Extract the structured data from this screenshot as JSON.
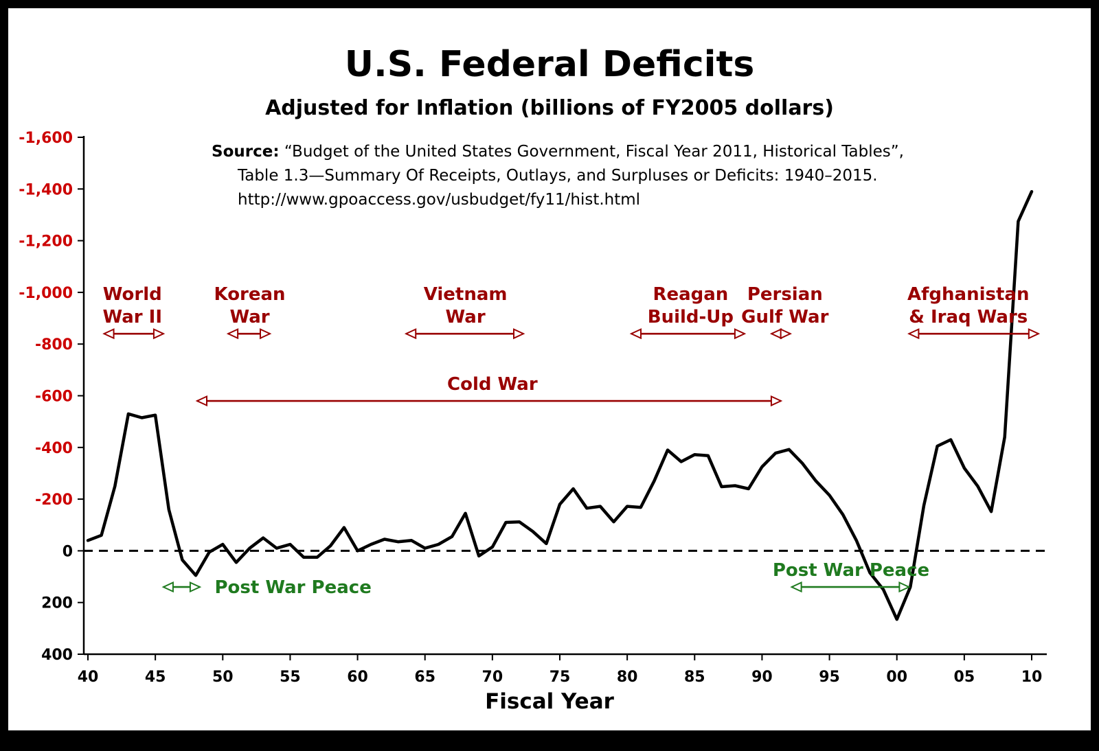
{
  "chart": {
    "title": "U.S. Federal Deficits",
    "subtitle": "Adjusted for Inflation (billions of FY2005 dollars)",
    "xlabel": "Fiscal Year",
    "source": {
      "label": "Source:",
      "line1": "“Budget of the United States Government, Fiscal Year 2011, Historical Tables”,",
      "line2": "Table 1.3—Summary Of Receipts, Outlays, and Surpluses or Deficits: 1940–2015.",
      "line3": "http://www.gpoaccess.gov/usbudget/fy11/hist.html"
    }
  },
  "chart_data": {
    "type": "line",
    "title": "U.S. Federal Deficits",
    "subtitle": "Adjusted for Inflation (billions of FY2005 dollars)",
    "xlabel": "Fiscal Year",
    "ylabel": "",
    "x_range": [
      1940,
      2010
    ],
    "ylim_inverted": [
      -1600,
      400
    ],
    "grid": false,
    "zero_line": "dashed",
    "colors": {
      "line": "#000000",
      "negative_tick": "#cc0000",
      "war": "#990000",
      "peace": "#1f7a1f"
    },
    "y_ticks": [
      {
        "value": -1600,
        "label": "-1,600"
      },
      {
        "value": -1400,
        "label": "-1,400"
      },
      {
        "value": -1200,
        "label": "-1,200"
      },
      {
        "value": -1000,
        "label": "-1,000"
      },
      {
        "value": -800,
        "label": "-800"
      },
      {
        "value": -600,
        "label": "-600"
      },
      {
        "value": -400,
        "label": "-400"
      },
      {
        "value": -200,
        "label": "-200"
      },
      {
        "value": 0,
        "label": "0"
      },
      {
        "value": 200,
        "label": "200"
      },
      {
        "value": 400,
        "label": "400"
      }
    ],
    "x_ticks": [
      {
        "value": 1940,
        "label": "40"
      },
      {
        "value": 1945,
        "label": "45"
      },
      {
        "value": 1950,
        "label": "50"
      },
      {
        "value": 1955,
        "label": "55"
      },
      {
        "value": 1960,
        "label": "60"
      },
      {
        "value": 1965,
        "label": "65"
      },
      {
        "value": 1970,
        "label": "70"
      },
      {
        "value": 1975,
        "label": "75"
      },
      {
        "value": 1980,
        "label": "80"
      },
      {
        "value": 1985,
        "label": "85"
      },
      {
        "value": 1990,
        "label": "90"
      },
      {
        "value": 1995,
        "label": "95"
      },
      {
        "value": 2000,
        "label": "00"
      },
      {
        "value": 2005,
        "label": "05"
      },
      {
        "value": 2010,
        "label": "10"
      }
    ],
    "years": [
      1940,
      1941,
      1942,
      1943,
      1944,
      1945,
      1946,
      1947,
      1948,
      1949,
      1950,
      1951,
      1952,
      1953,
      1954,
      1955,
      1956,
      1957,
      1958,
      1959,
      1960,
      1961,
      1962,
      1963,
      1964,
      1965,
      1966,
      1967,
      1968,
      1969,
      1970,
      1971,
      1972,
      1973,
      1974,
      1975,
      1976,
      1977,
      1978,
      1979,
      1980,
      1981,
      1982,
      1983,
      1984,
      1985,
      1986,
      1987,
      1988,
      1989,
      1990,
      1991,
      1992,
      1993,
      1994,
      1995,
      1996,
      1997,
      1998,
      1999,
      2000,
      2001,
      2002,
      2003,
      2004,
      2005,
      2006,
      2007,
      2008,
      2009,
      2010
    ],
    "deficit_billions_fy2005": [
      -40,
      -60,
      -250,
      -530,
      -515,
      -525,
      -160,
      35,
      95,
      5,
      -25,
      45,
      -10,
      -50,
      -10,
      -25,
      25,
      25,
      -20,
      -90,
      0,
      -25,
      -45,
      -35,
      -40,
      -10,
      -25,
      -55,
      -145,
      20,
      -15,
      -110,
      -112,
      -75,
      -28,
      -180,
      -240,
      -165,
      -172,
      -112,
      -172,
      -168,
      -270,
      -390,
      -345,
      -372,
      -368,
      -248,
      -252,
      -240,
      -325,
      -378,
      -392,
      -338,
      -270,
      -215,
      -140,
      -40,
      85,
      150,
      265,
      140,
      -175,
      -405,
      -430,
      -320,
      -250,
      -152,
      -440,
      -1275,
      -1390
    ],
    "annotations": [
      {
        "id": "world-war-2",
        "lines": [
          "World",
          "War II"
        ],
        "color": "#990000",
        "label_x": 1943.3,
        "label_pos": "above",
        "arrow": {
          "x1": 1941.2,
          "x2": 1945.6,
          "y": -840
        }
      },
      {
        "id": "korean-war",
        "lines": [
          "Korean",
          "War"
        ],
        "color": "#990000",
        "label_x": 1952.0,
        "label_pos": "above",
        "arrow": {
          "x1": 1950.4,
          "x2": 1953.5,
          "y": -840
        }
      },
      {
        "id": "vietnam-war",
        "lines": [
          "Vietnam",
          "War"
        ],
        "color": "#990000",
        "label_x": 1968.0,
        "label_pos": "above",
        "arrow": {
          "x1": 1963.6,
          "x2": 1972.3,
          "y": -840
        }
      },
      {
        "id": "reagan-build-up",
        "lines": [
          "Reagan",
          "Build-Up"
        ],
        "color": "#990000",
        "label_x": 1984.7,
        "label_pos": "above",
        "arrow": {
          "x1": 1980.3,
          "x2": 1988.7,
          "y": -840
        }
      },
      {
        "id": "persian-gulf-war",
        "lines": [
          "Persian",
          "Gulf War"
        ],
        "color": "#990000",
        "label_x": 1991.7,
        "label_pos": "above",
        "arrow": {
          "x1": 1990.7,
          "x2": 1992.1,
          "y": -840
        }
      },
      {
        "id": "afghanistan-iraq-wars",
        "lines": [
          "Afghanistan",
          "& Iraq Wars"
        ],
        "color": "#990000",
        "label_x": 2005.3,
        "label_pos": "above",
        "arrow": {
          "x1": 2000.9,
          "x2": 2010.5,
          "y": -840
        }
      },
      {
        "id": "cold-war",
        "lines": [
          "Cold War"
        ],
        "color": "#990000",
        "label_x": 1970.0,
        "label_pos": "above",
        "arrow": {
          "x1": 1948.1,
          "x2": 1991.4,
          "y": -580
        }
      },
      {
        "id": "post-war-peace-1",
        "lines": [
          "Post War Peace"
        ],
        "color": "#1f7a1f",
        "label_x": 1949.4,
        "label_pos": "right",
        "arrow": {
          "x1": 1945.6,
          "x2": 1948.3,
          "y": 140
        }
      },
      {
        "id": "post-war-peace-2",
        "lines": [
          "Post War Peace"
        ],
        "color": "#1f7a1f",
        "label_x": 1996.6,
        "label_pos": "above",
        "arrow": {
          "x1": 1992.2,
          "x2": 2000.9,
          "y": 140
        }
      }
    ]
  }
}
